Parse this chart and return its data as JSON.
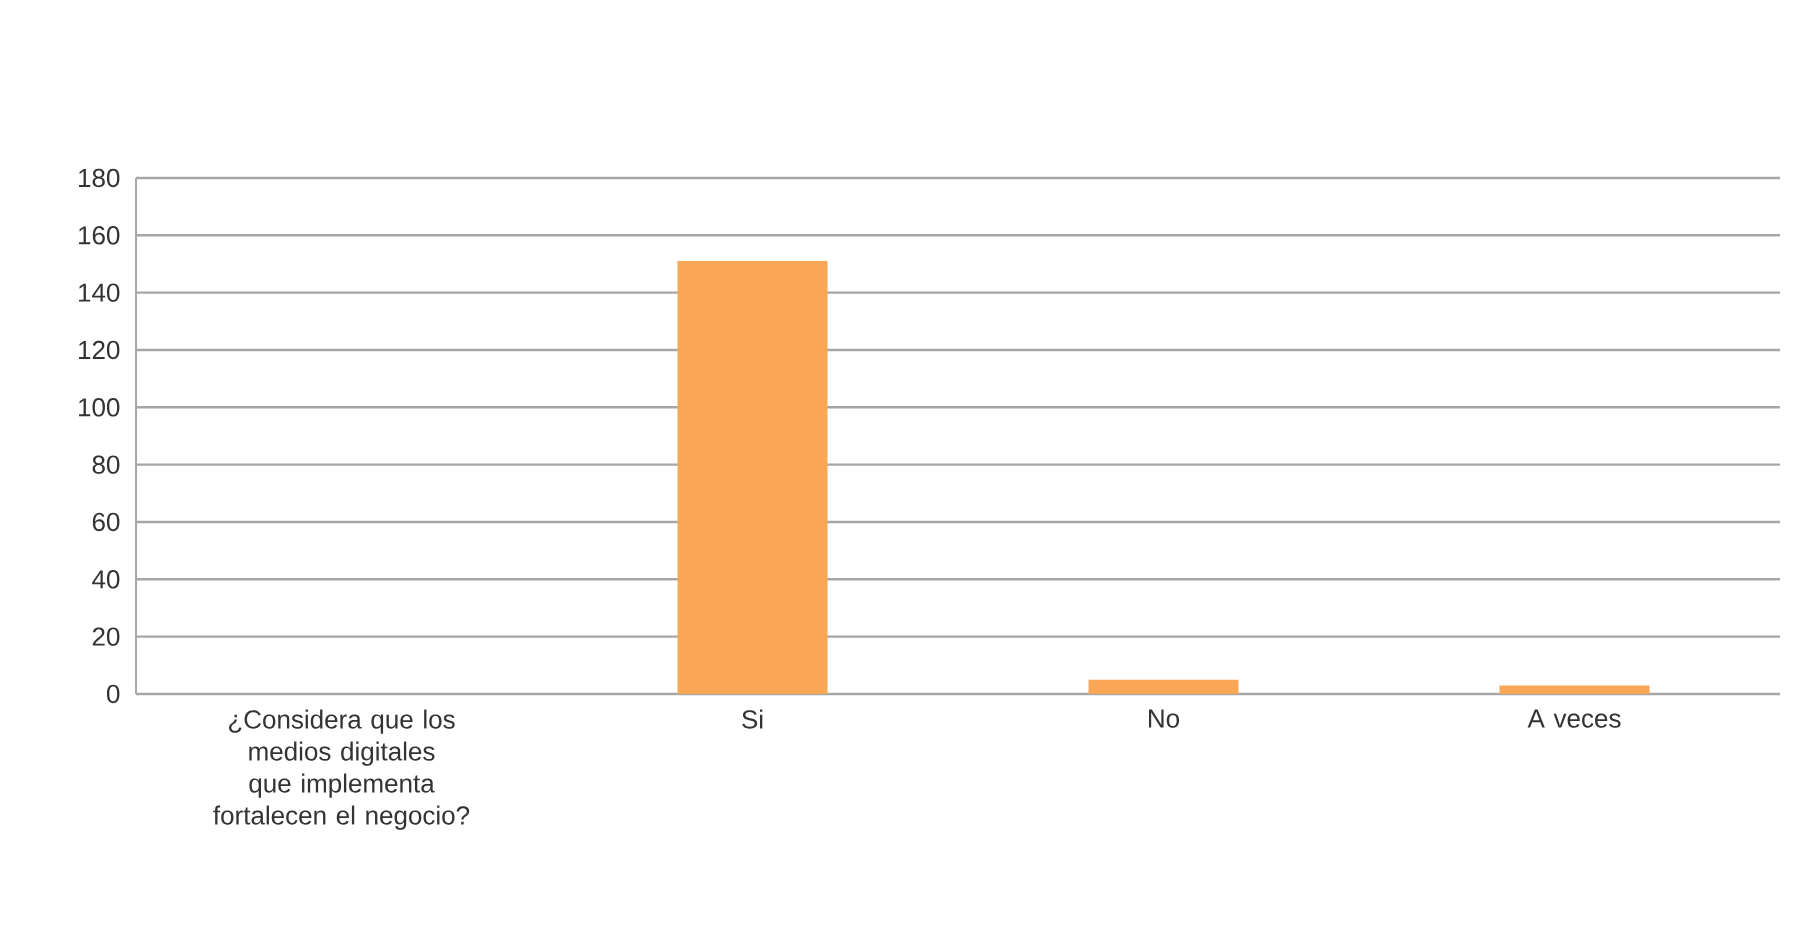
{
  "chart_data": {
    "type": "bar",
    "categories": [
      "¿Considera que los medios digitales que implementa fortalecen el negocio?",
      "Si",
      "No",
      "A veces"
    ],
    "values": [
      null,
      151,
      5,
      3
    ],
    "color": "#f9a656",
    "ylim": [
      0,
      180
    ],
    "yticks": [
      0,
      20,
      40,
      60,
      80,
      100,
      120,
      140,
      160,
      180
    ],
    "grid": "y"
  }
}
